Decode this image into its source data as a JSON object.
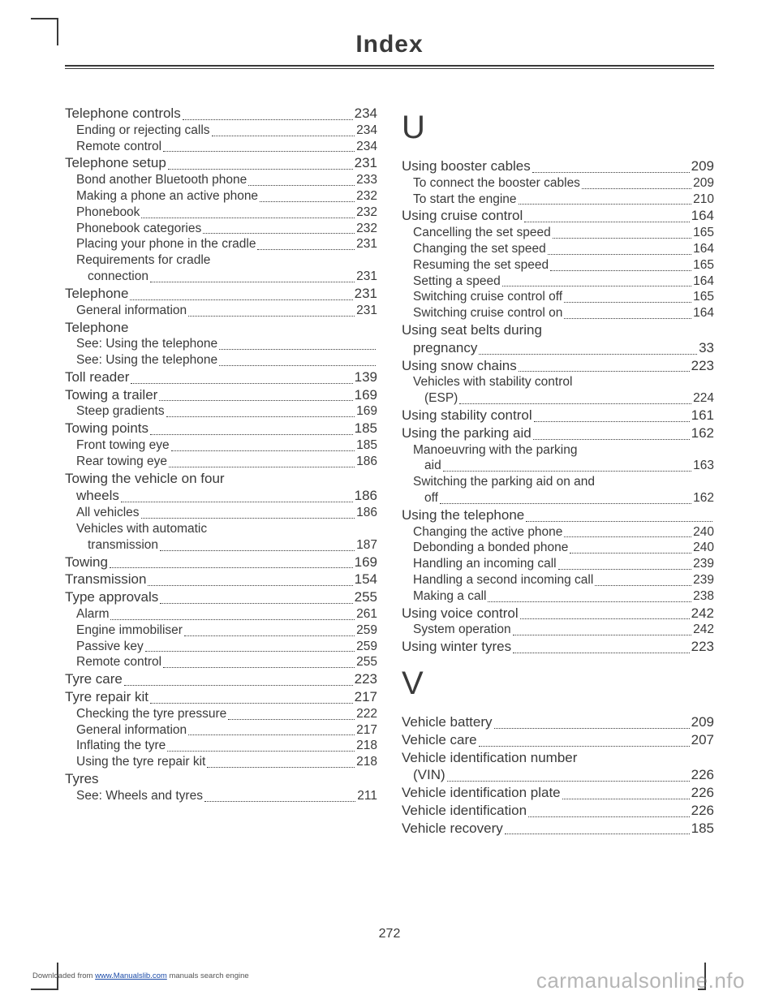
{
  "title": "Index",
  "page_number": "272",
  "footer_left_prefix": "Downloaded from ",
  "footer_left_link": "www.Manualslib.com",
  "footer_left_suffix": " manuals search engine",
  "footer_right_a": "carman",
  "footer_right_b": "ualsonline.",
  "footer_right_c": "nfo",
  "left": [
    {
      "t": "p",
      "l": "Telephone controls",
      "p": "234"
    },
    {
      "t": "s",
      "l": "Ending or rejecting calls",
      "p": "234"
    },
    {
      "t": "s",
      "l": "Remote control",
      "p": "234"
    },
    {
      "t": "p",
      "l": "Telephone setup",
      "p": "231"
    },
    {
      "t": "s",
      "l": "Bond another Bluetooth phone",
      "p": "233"
    },
    {
      "t": "s",
      "l": "Making a phone an active phone",
      "p": "232",
      "tight": true
    },
    {
      "t": "s",
      "l": "Phonebook",
      "p": "232"
    },
    {
      "t": "s",
      "l": "Phonebook categories",
      "p": "232"
    },
    {
      "t": "s",
      "l": "Placing your phone in the cradle",
      "p": "231"
    },
    {
      "t": "s",
      "l": "Requirements for cradle",
      "nopage": true
    },
    {
      "t": "w",
      "l": "connection",
      "p": "231"
    },
    {
      "t": "p",
      "l": "Telephone",
      "p": "231"
    },
    {
      "t": "s",
      "l": "General information",
      "p": "231"
    },
    {
      "t": "p",
      "l": "Telephone",
      "nopage": true
    },
    {
      "t": "s",
      "l": "See: Using the telephone",
      "p": "",
      "dotsonly": true
    },
    {
      "t": "s",
      "l": "See: Using the telephone",
      "p": "",
      "dotsonly": true
    },
    {
      "t": "p",
      "l": "Toll reader",
      "p": "139"
    },
    {
      "t": "p",
      "l": "Towing a trailer",
      "p": "169"
    },
    {
      "t": "s",
      "l": "Steep gradients",
      "p": "169"
    },
    {
      "t": "p",
      "l": "Towing points",
      "p": "185"
    },
    {
      "t": "s",
      "l": "Front towing eye",
      "p": "185"
    },
    {
      "t": "s",
      "l": "Rear towing eye",
      "p": "186"
    },
    {
      "t": "p",
      "l": "Towing the vehicle on four",
      "nopage": true
    },
    {
      "t": "pw",
      "l": "wheels",
      "p": "186"
    },
    {
      "t": "s",
      "l": "All vehicles",
      "p": "186"
    },
    {
      "t": "s",
      "l": "Vehicles with automatic",
      "nopage": true
    },
    {
      "t": "w",
      "l": "transmission",
      "p": "187"
    },
    {
      "t": "p",
      "l": "Towing",
      "p": "169"
    },
    {
      "t": "p",
      "l": "Transmission",
      "p": "154"
    },
    {
      "t": "p",
      "l": "Type approvals",
      "p": "255"
    },
    {
      "t": "s",
      "l": "Alarm",
      "p": "261"
    },
    {
      "t": "s",
      "l": "Engine immobiliser",
      "p": "259"
    },
    {
      "t": "s",
      "l": "Passive key",
      "p": "259"
    },
    {
      "t": "s",
      "l": "Remote control",
      "p": "255"
    },
    {
      "t": "p",
      "l": "Tyre care",
      "p": "223"
    },
    {
      "t": "p",
      "l": "Tyre repair kit",
      "p": "217"
    },
    {
      "t": "s",
      "l": "Checking the tyre pressure",
      "p": "222"
    },
    {
      "t": "s",
      "l": "General information",
      "p": "217"
    },
    {
      "t": "s",
      "l": "Inflating the tyre",
      "p": "218"
    },
    {
      "t": "s",
      "l": "Using the tyre repair kit",
      "p": "218"
    },
    {
      "t": "p",
      "l": "Tyres",
      "nopage": true
    },
    {
      "t": "s",
      "l": "See: Wheels and tyres",
      "p": "211"
    }
  ],
  "right_u": [
    {
      "t": "p",
      "l": "Using booster cables",
      "p": "209"
    },
    {
      "t": "s",
      "l": "To connect the booster cables",
      "p": "209"
    },
    {
      "t": "s",
      "l": "To start the engine",
      "p": "210"
    },
    {
      "t": "p",
      "l": "Using cruise control",
      "p": "164"
    },
    {
      "t": "s",
      "l": "Cancelling the set speed",
      "p": "165"
    },
    {
      "t": "s",
      "l": "Changing the set speed",
      "p": "164"
    },
    {
      "t": "s",
      "l": "Resuming the set speed",
      "p": "165"
    },
    {
      "t": "s",
      "l": "Setting a speed",
      "p": "164"
    },
    {
      "t": "s",
      "l": "Switching cruise control off",
      "p": "165"
    },
    {
      "t": "s",
      "l": "Switching cruise control on",
      "p": "164"
    },
    {
      "t": "p",
      "l": "Using seat belts during",
      "nopage": true
    },
    {
      "t": "pw",
      "l": "pregnancy",
      "p": "33"
    },
    {
      "t": "p",
      "l": "Using snow chains",
      "p": "223"
    },
    {
      "t": "s",
      "l": "Vehicles with stability control",
      "nopage": true
    },
    {
      "t": "w",
      "l": "(ESP)",
      "p": "224"
    },
    {
      "t": "p",
      "l": "Using stability control",
      "p": "161"
    },
    {
      "t": "p",
      "l": "Using the parking aid",
      "p": "162"
    },
    {
      "t": "s",
      "l": "Manoeuvring with the parking",
      "nopage": true
    },
    {
      "t": "w",
      "l": "aid",
      "p": "163"
    },
    {
      "t": "s",
      "l": "Switching the parking aid on and",
      "nopage": true
    },
    {
      "t": "w",
      "l": "off",
      "p": "162"
    },
    {
      "t": "p",
      "l": "Using the telephone",
      "p": "",
      "dotsonly": true
    },
    {
      "t": "s",
      "l": "Changing the active phone",
      "p": "240"
    },
    {
      "t": "s",
      "l": "Debonding a bonded phone",
      "p": "240"
    },
    {
      "t": "s",
      "l": "Handling an incoming call",
      "p": "239"
    },
    {
      "t": "s",
      "l": "Handling a second incoming call",
      "p": "239"
    },
    {
      "t": "s",
      "l": "Making a call",
      "p": "238"
    },
    {
      "t": "p",
      "l": "Using voice control",
      "p": "242"
    },
    {
      "t": "s",
      "l": "System operation",
      "p": "242"
    },
    {
      "t": "p",
      "l": "Using winter tyres",
      "p": "223"
    }
  ],
  "right_v": [
    {
      "t": "p",
      "l": "Vehicle battery",
      "p": "209"
    },
    {
      "t": "p",
      "l": "Vehicle care",
      "p": "207"
    },
    {
      "t": "p",
      "l": "Vehicle identification number",
      "nopage": true
    },
    {
      "t": "pw",
      "l": "(VIN)",
      "p": "226"
    },
    {
      "t": "p",
      "l": "Vehicle identification plate",
      "p": "226"
    },
    {
      "t": "p",
      "l": "Vehicle identification",
      "p": "226"
    },
    {
      "t": "p",
      "l": "Vehicle recovery",
      "p": "185"
    }
  ]
}
